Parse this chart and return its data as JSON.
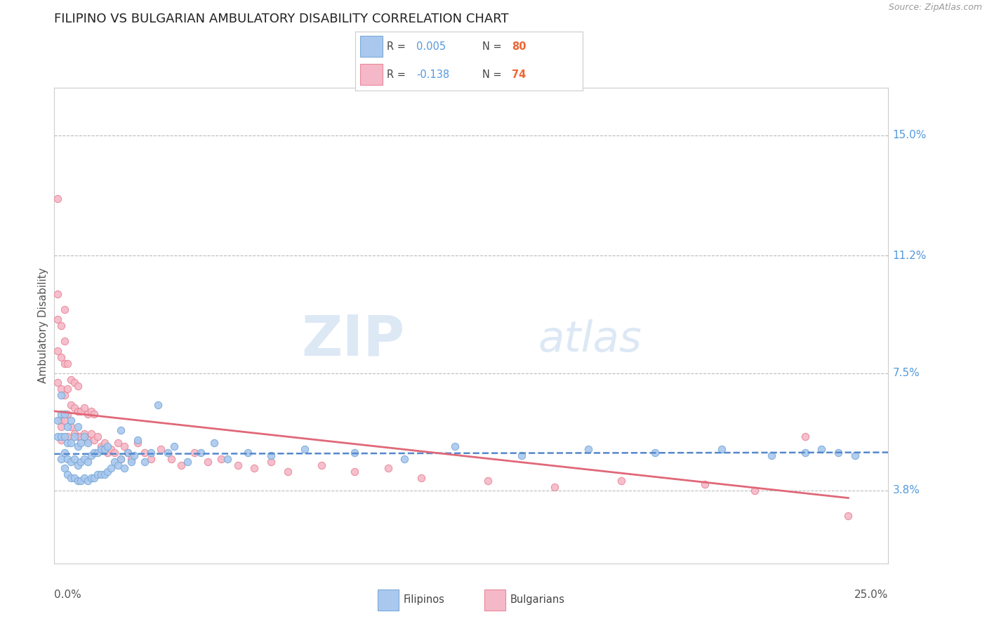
{
  "title": "FILIPINO VS BULGARIAN AMBULATORY DISABILITY CORRELATION CHART",
  "source": "Source: ZipAtlas.com",
  "ylabel": "Ambulatory Disability",
  "yticks": [
    0.038,
    0.075,
    0.112,
    0.15
  ],
  "ytick_labels": [
    "3.8%",
    "7.5%",
    "11.2%",
    "15.0%"
  ],
  "xmin": 0.0,
  "xmax": 0.25,
  "ymin": 0.015,
  "ymax": 0.165,
  "filipino_color": "#aac8ee",
  "bulgarian_color": "#f5b8c8",
  "filipino_edge_color": "#7aaad8",
  "bulgarian_edge_color": "#e88898",
  "filipino_line_color": "#5588cc",
  "bulgarian_line_color": "#e06878",
  "R_filipino": 0.005,
  "N_filipino": 80,
  "R_bulgarian": -0.138,
  "N_bulgarian": 74,
  "background_color": "#ffffff",
  "grid_color": "#bbbbbb",
  "title_color": "#222222",
  "label_color": "#555555",
  "tick_label_color": "#5599dd",
  "legend_N_color": "#ee6633",
  "watermark_color": "#dde8f5",
  "filipino_x": [
    0.001,
    0.001,
    0.002,
    0.002,
    0.002,
    0.002,
    0.003,
    0.003,
    0.003,
    0.003,
    0.004,
    0.004,
    0.004,
    0.004,
    0.005,
    0.005,
    0.005,
    0.005,
    0.006,
    0.006,
    0.006,
    0.007,
    0.007,
    0.007,
    0.007,
    0.008,
    0.008,
    0.008,
    0.009,
    0.009,
    0.009,
    0.01,
    0.01,
    0.01,
    0.011,
    0.011,
    0.012,
    0.012,
    0.013,
    0.013,
    0.014,
    0.014,
    0.015,
    0.015,
    0.016,
    0.016,
    0.017,
    0.018,
    0.019,
    0.02,
    0.02,
    0.021,
    0.022,
    0.023,
    0.024,
    0.025,
    0.027,
    0.029,
    0.031,
    0.034,
    0.036,
    0.04,
    0.044,
    0.048,
    0.052,
    0.058,
    0.065,
    0.075,
    0.09,
    0.105,
    0.12,
    0.14,
    0.16,
    0.18,
    0.2,
    0.215,
    0.225,
    0.23,
    0.235,
    0.24
  ],
  "filipino_y": [
    0.055,
    0.06,
    0.048,
    0.055,
    0.062,
    0.068,
    0.045,
    0.05,
    0.055,
    0.062,
    0.043,
    0.048,
    0.053,
    0.058,
    0.042,
    0.047,
    0.053,
    0.06,
    0.042,
    0.048,
    0.055,
    0.041,
    0.046,
    0.052,
    0.058,
    0.041,
    0.047,
    0.053,
    0.042,
    0.048,
    0.055,
    0.041,
    0.047,
    0.053,
    0.042,
    0.049,
    0.042,
    0.05,
    0.043,
    0.05,
    0.043,
    0.051,
    0.043,
    0.051,
    0.044,
    0.052,
    0.045,
    0.047,
    0.046,
    0.048,
    0.057,
    0.045,
    0.05,
    0.047,
    0.049,
    0.054,
    0.047,
    0.05,
    0.065,
    0.05,
    0.052,
    0.047,
    0.05,
    0.053,
    0.048,
    0.05,
    0.049,
    0.051,
    0.05,
    0.048,
    0.052,
    0.049,
    0.051,
    0.05,
    0.051,
    0.049,
    0.05,
    0.051,
    0.05,
    0.049
  ],
  "bulgarian_x": [
    0.001,
    0.001,
    0.001,
    0.001,
    0.002,
    0.002,
    0.002,
    0.002,
    0.002,
    0.003,
    0.003,
    0.003,
    0.003,
    0.004,
    0.004,
    0.004,
    0.005,
    0.005,
    0.005,
    0.006,
    0.006,
    0.006,
    0.007,
    0.007,
    0.007,
    0.008,
    0.008,
    0.009,
    0.009,
    0.01,
    0.01,
    0.011,
    0.011,
    0.012,
    0.012,
    0.013,
    0.014,
    0.015,
    0.016,
    0.017,
    0.018,
    0.019,
    0.02,
    0.021,
    0.022,
    0.023,
    0.025,
    0.027,
    0.029,
    0.032,
    0.035,
    0.038,
    0.042,
    0.046,
    0.05,
    0.055,
    0.06,
    0.065,
    0.07,
    0.08,
    0.09,
    0.1,
    0.11,
    0.13,
    0.15,
    0.17,
    0.195,
    0.21,
    0.225,
    0.238,
    0.001,
    0.002,
    0.003,
    0.004
  ],
  "bulgarian_y": [
    0.072,
    0.082,
    0.092,
    0.1,
    0.06,
    0.07,
    0.08,
    0.09,
    0.058,
    0.06,
    0.068,
    0.078,
    0.085,
    0.062,
    0.07,
    0.078,
    0.058,
    0.065,
    0.073,
    0.056,
    0.064,
    0.072,
    0.055,
    0.063,
    0.071,
    0.055,
    0.063,
    0.056,
    0.064,
    0.054,
    0.062,
    0.056,
    0.063,
    0.054,
    0.062,
    0.055,
    0.052,
    0.053,
    0.05,
    0.051,
    0.05,
    0.053,
    0.048,
    0.052,
    0.05,
    0.048,
    0.053,
    0.05,
    0.048,
    0.051,
    0.048,
    0.046,
    0.05,
    0.047,
    0.048,
    0.046,
    0.045,
    0.047,
    0.044,
    0.046,
    0.044,
    0.045,
    0.042,
    0.041,
    0.039,
    0.041,
    0.04,
    0.038,
    0.055,
    0.03,
    0.13,
    0.054,
    0.095,
    0.055
  ]
}
